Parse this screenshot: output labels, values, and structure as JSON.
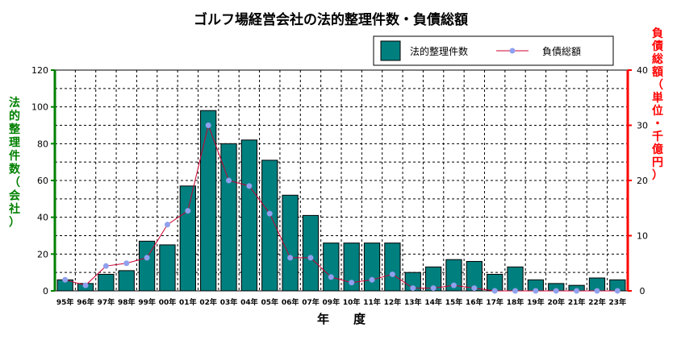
{
  "chart_data": {
    "type": "bar",
    "title": "ゴルフ場経営会社の法的整理件数・負債総額",
    "xlabel": "年　　度",
    "ylabel_left": "法的整理件数（会社）",
    "ylabel_right": "負債総額（単位・千億円）",
    "categories": [
      "95年",
      "96年",
      "97年",
      "98年",
      "99年",
      "00年",
      "01年",
      "02年",
      "03年",
      "04年",
      "05年",
      "06年",
      "07年",
      "09年",
      "10年",
      "11年",
      "12年",
      "13年",
      "14年",
      "15年",
      "16年",
      "17年",
      "18年",
      "19年",
      "20年",
      "21年",
      "22年",
      "23年"
    ],
    "ylim_left": [
      0,
      120
    ],
    "yticks_left": [
      "0",
      "20",
      "40",
      "60",
      "80",
      "100",
      "120"
    ],
    "ylim_right": [
      0,
      40
    ],
    "yticks_right": [
      "0",
      "10",
      "20",
      "30",
      "40"
    ],
    "grid": true,
    "legend_placement": "top-right",
    "series": [
      {
        "name": "法的整理件数",
        "type": "bar",
        "axis": "left",
        "color": "#007f7f",
        "values": [
          6,
          4,
          9,
          11,
          27,
          25,
          57,
          98,
          80,
          82,
          71,
          52,
          41,
          26,
          26,
          26,
          26,
          10,
          13,
          17,
          16,
          9,
          13,
          6,
          4,
          3,
          7,
          6
        ]
      },
      {
        "name": "負債総額",
        "type": "line",
        "axis": "right",
        "color": "#cc0033",
        "marker_color": "#8fa0ee",
        "values": [
          2,
          1,
          4.5,
          5,
          6,
          12,
          14.5,
          30,
          20,
          19,
          14,
          6,
          6,
          2.5,
          1.5,
          2,
          3,
          0.5,
          0.5,
          1,
          0.5,
          0,
          0,
          0,
          0,
          0,
          0,
          0
        ]
      }
    ]
  }
}
